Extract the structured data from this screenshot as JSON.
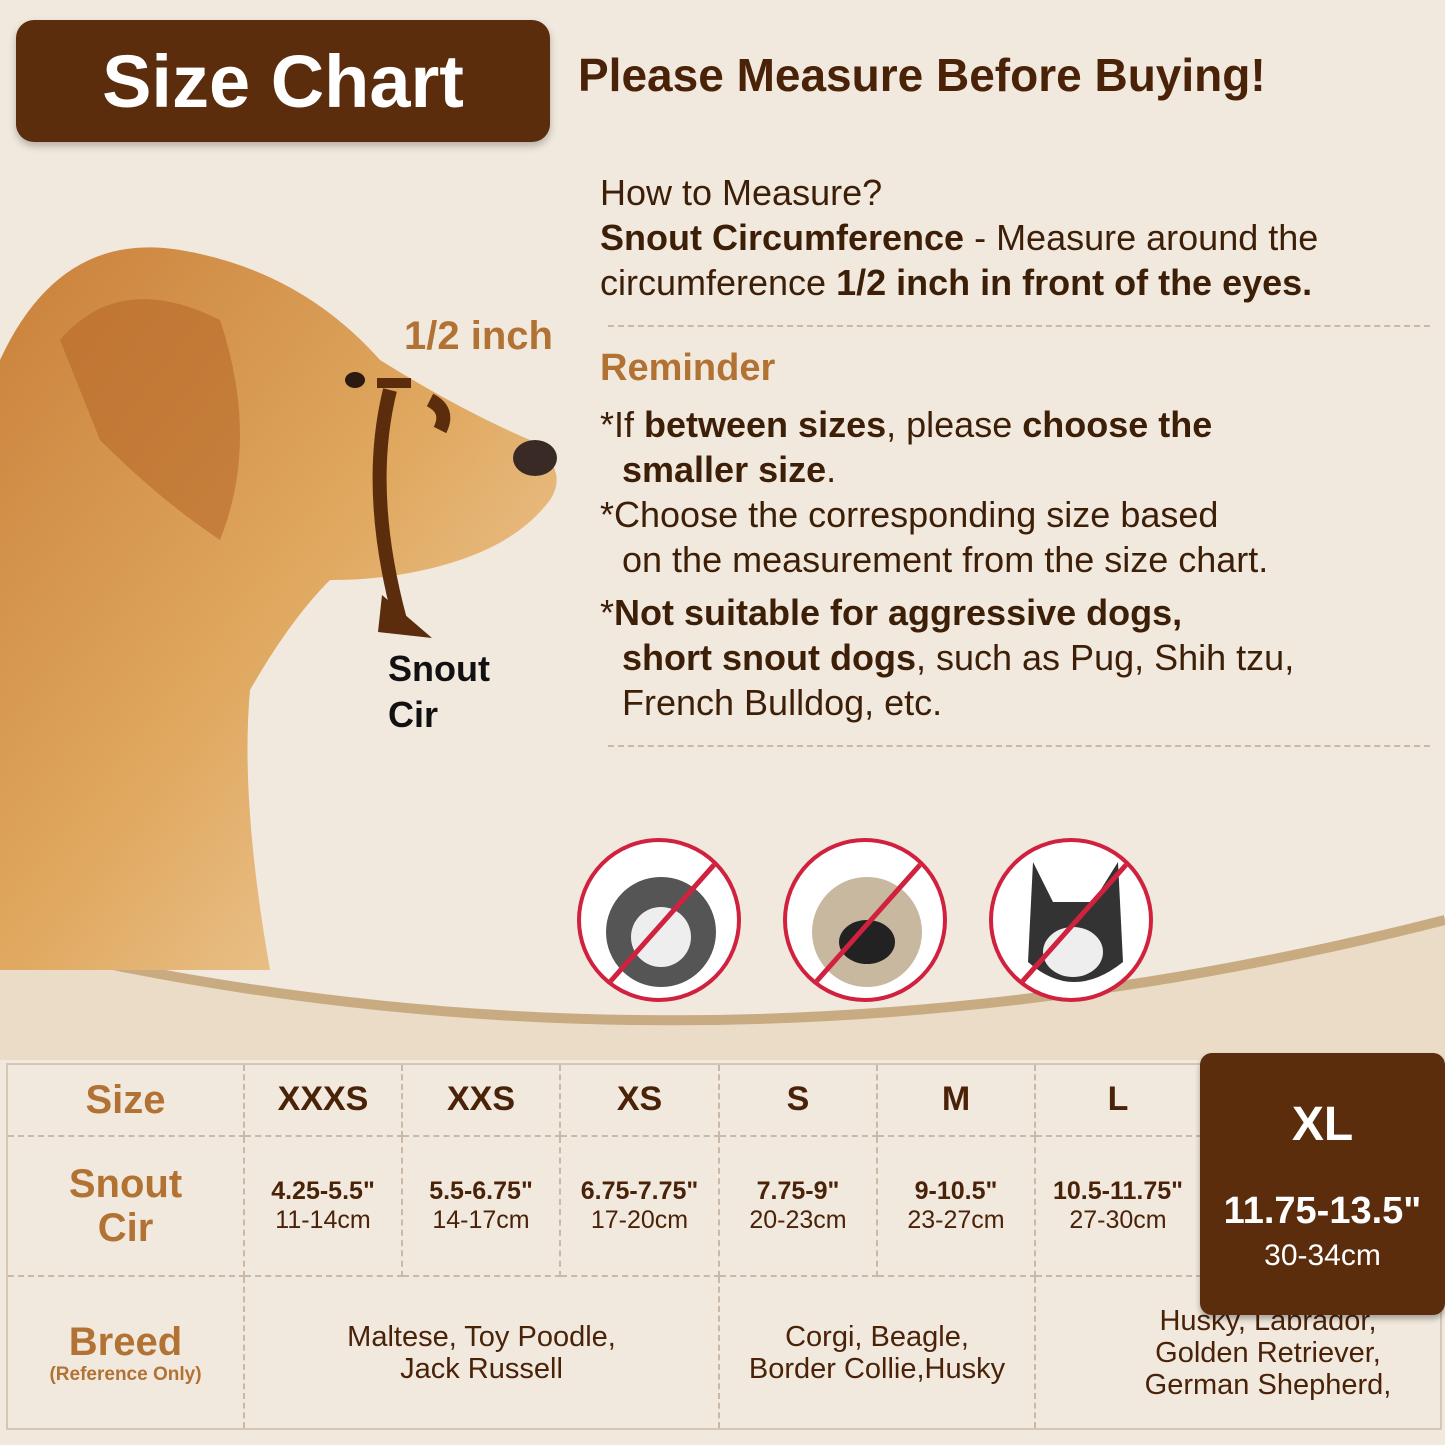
{
  "header": {
    "title": "Size Chart",
    "headline": "Please Measure Before Buying!"
  },
  "howto": {
    "question": "How to Measure?",
    "term": "Snout Circumference",
    "dash": " - Measure around the circumference ",
    "emph": "1/2 inch in front of the eyes."
  },
  "diagram": {
    "half_inch": "1/2 inch",
    "snout_line1": "Snout",
    "snout_line2": "Cir"
  },
  "reminder": {
    "title": "Reminder",
    "r1": {
      "a": "*If ",
      "b": "between sizes",
      "c": ", please ",
      "d": "choose the",
      "e": "smaller size",
      "f": "."
    },
    "r2": {
      "a": "*Choose the corresponding size based",
      "b": "on the measurement from the size chart."
    },
    "r3": {
      "a": "*",
      "b": "Not suitable for aggressive dogs,",
      "c": "short snout dogs",
      ", such as": "",
      "d": ", such as Pug, Shih tzu,",
      "e": "French Bulldog, etc."
    }
  },
  "not_suitable_icons": [
    "prohibited-shih-tzu-icon",
    "prohibited-pug-icon",
    "prohibited-french-bulldog-icon"
  ],
  "colors": {
    "background": "#f1e9de",
    "dark_brown": "#5b2d0c",
    "tan": "#b27234",
    "prohibit_red": "#d0213e"
  },
  "table": {
    "size_label": "Size",
    "snout_label_1": "Snout",
    "snout_label_2": "Cir",
    "breed_label": "Breed",
    "breed_note": "(Reference Only)",
    "sizes": [
      {
        "size": "XXXS",
        "inch": "4.25-5.5\"",
        "cm": "11-14cm"
      },
      {
        "size": "XXS",
        "inch": "5.5-6.75\"",
        "cm": "14-17cm"
      },
      {
        "size": "XS",
        "inch": "6.75-7.75\"",
        "cm": "17-20cm"
      },
      {
        "size": "S",
        "inch": "7.75-9\"",
        "cm": "20-23cm"
      },
      {
        "size": "M",
        "inch": "9-10.5\"",
        "cm": "23-27cm"
      },
      {
        "size": "L",
        "inch": "10.5-11.75\"",
        "cm": "27-30cm"
      },
      {
        "size": "XL",
        "inch": "11.75-13.5\"",
        "cm": "30-34cm"
      }
    ],
    "breeds": [
      {
        "l1": "Maltese, Toy Poodle,",
        "l2": "Jack Russell"
      },
      {
        "l1": "Corgi, Beagle,",
        "l2": "Border Collie,Husky"
      },
      {
        "l1": "Husky, Labrador,",
        "l2": "Golden Retriever,",
        "l3": "German Shepherd,"
      }
    ]
  }
}
